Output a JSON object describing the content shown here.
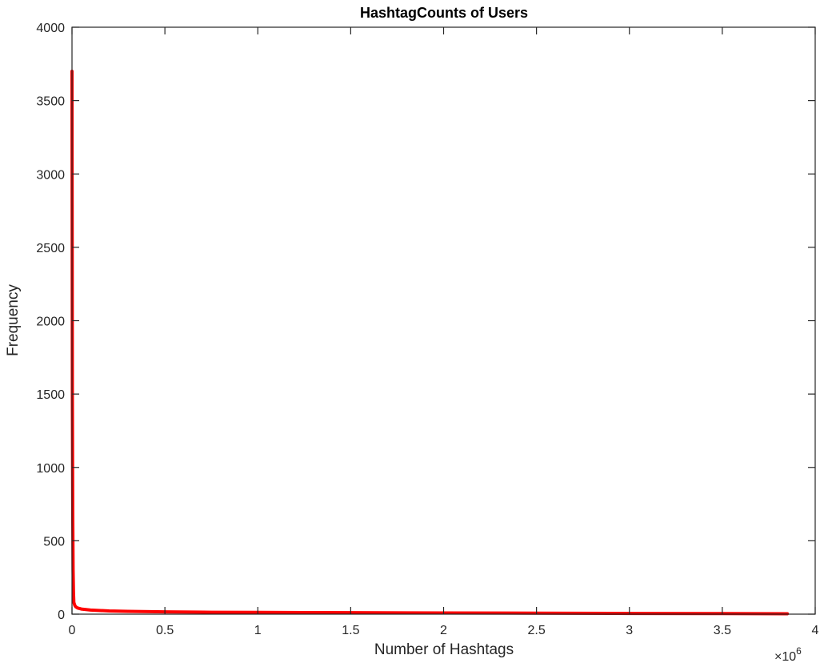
{
  "chart_data": {
    "type": "line",
    "title": "HashtagCounts of Users",
    "xlabel": "Number of Hashtags",
    "ylabel": "Frequency",
    "x_exponent_base": "×10",
    "x_exponent_power": "6",
    "xlim": [
      0,
      4
    ],
    "ylim": [
      0,
      4000
    ],
    "x_ticks": [
      0,
      0.5,
      1,
      1.5,
      2,
      2.5,
      3,
      3.5,
      4
    ],
    "x_tick_labels": [
      "0",
      "0.5",
      "1",
      "1.5",
      "2",
      "2.5",
      "3",
      "3.5",
      "4"
    ],
    "y_ticks": [
      0,
      500,
      1000,
      1500,
      2000,
      2500,
      3000,
      3500,
      4000
    ],
    "y_tick_labels": [
      "0",
      "500",
      "1000",
      "1500",
      "2000",
      "2500",
      "3000",
      "3500",
      "4000"
    ],
    "grid": false,
    "series": [
      {
        "color": "#ff0000",
        "x": [
          0,
          0.001,
          0.002,
          0.004,
          0.006,
          0.008,
          0.01,
          0.015,
          0.02,
          0.03,
          0.05,
          0.1,
          0.2,
          0.3,
          0.5,
          0.75,
          1.0,
          1.5,
          2.0,
          2.5,
          3.0,
          3.5,
          3.85
        ],
        "y": [
          3700,
          2600,
          1500,
          700,
          300,
          150,
          80,
          60,
          50,
          42,
          35,
          28,
          22,
          19,
          16,
          13,
          12,
          10,
          8,
          7,
          5,
          4,
          3
        ]
      }
    ]
  }
}
